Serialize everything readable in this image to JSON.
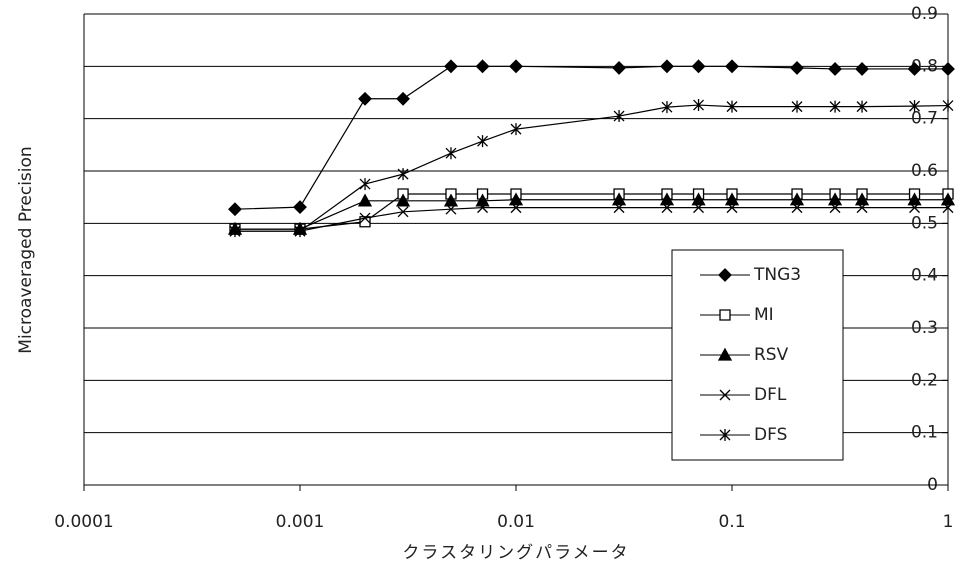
{
  "chart_data": {
    "type": "line",
    "xlabel": "クラスタリングパラメータ",
    "ylabel": "Microaveraged Precision",
    "x": [
      0.0005,
      0.001,
      0.002,
      0.003,
      0.005,
      0.007,
      0.01,
      0.03,
      0.05,
      0.07,
      0.1,
      0.2,
      0.3,
      0.4,
      0.7,
      1
    ],
    "series": [
      {
        "name": "TNG3",
        "color": "#000000",
        "marker": "diamond",
        "values": [
          0.527,
          0.531,
          0.738,
          0.738,
          0.8,
          0.8,
          0.8,
          0.797,
          0.8,
          0.8,
          0.8,
          0.797,
          0.795,
          0.795,
          0.795,
          0.795
        ]
      },
      {
        "name": "MI",
        "color": "#000000",
        "marker": "square",
        "values": [
          0.489,
          0.489,
          0.503,
          0.556,
          0.556,
          0.556,
          0.556,
          0.556,
          0.556,
          0.556,
          0.556,
          0.556,
          0.556,
          0.556,
          0.556,
          0.556
        ]
      },
      {
        "name": "RSV",
        "color": "#000000",
        "marker": "triangle",
        "values": [
          0.489,
          0.489,
          0.543,
          0.543,
          0.543,
          0.543,
          0.545,
          0.545,
          0.545,
          0.545,
          0.545,
          0.545,
          0.545,
          0.545,
          0.545,
          0.545
        ]
      },
      {
        "name": "DFL",
        "color": "#000000",
        "marker": "x",
        "values": [
          0.485,
          0.485,
          0.51,
          0.522,
          0.527,
          0.53,
          0.53,
          0.53,
          0.53,
          0.53,
          0.53,
          0.53,
          0.53,
          0.53,
          0.53,
          0.53
        ]
      },
      {
        "name": "DFS",
        "color": "#000000",
        "marker": "asterisk",
        "values": [
          0.485,
          0.485,
          0.575,
          0.594,
          0.634,
          0.657,
          0.68,
          0.705,
          0.722,
          0.726,
          0.723,
          0.723,
          0.723,
          0.723,
          0.724,
          0.725
        ]
      }
    ],
    "xlim": [
      0.0001,
      1
    ],
    "xticks": [
      0.0001,
      0.001,
      0.01,
      0.1,
      1
    ],
    "xscale": "log",
    "ylim": [
      0,
      0.9
    ],
    "yticks": [
      0,
      0.1,
      0.2,
      0.3,
      0.4,
      0.5,
      0.6,
      0.7,
      0.8,
      0.9
    ],
    "grid": true
  }
}
